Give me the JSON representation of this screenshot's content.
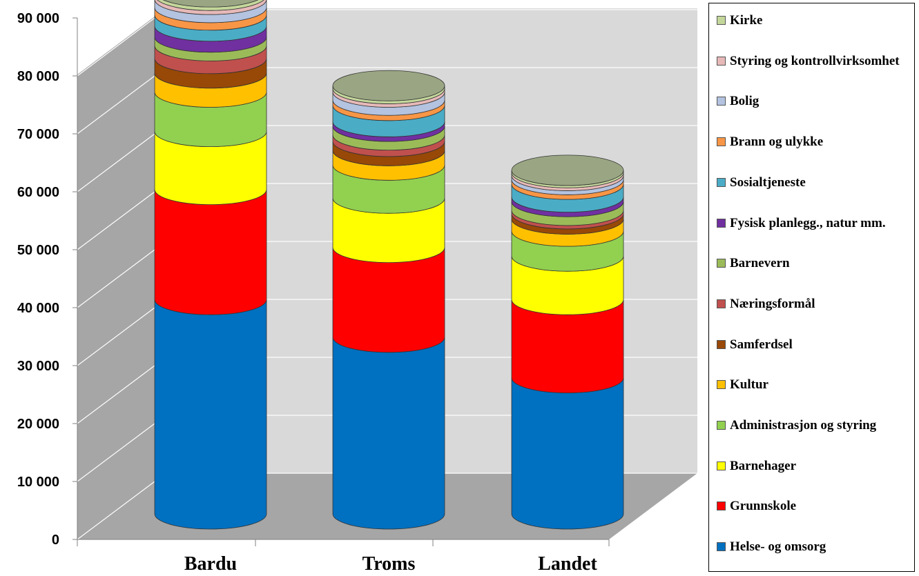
{
  "chart_data": {
    "type": "bar",
    "variant": "stacked-3d-cylinder",
    "categories": [
      "Bardu",
      "Troms",
      "Landet"
    ],
    "ylim": [
      0,
      90000
    ],
    "yticks": [
      "0",
      "10 000",
      "20 000",
      "30 000",
      "40 000",
      "50 000",
      "60 000",
      "70 000",
      "80 000",
      "90 000"
    ],
    "grid": true,
    "legend_position": "right",
    "series": [
      {
        "name": "Helse- og omsorg",
        "color": "#0070C0",
        "values": [
          37000,
          30500,
          23500
        ]
      },
      {
        "name": "Grunnskole",
        "color": "#FF0000",
        "values": [
          19000,
          15500,
          13500
        ]
      },
      {
        "name": "Barnehager",
        "color": "#FFFF00",
        "values": [
          10000,
          8500,
          7500
        ]
      },
      {
        "name": "Administrasjon og styring",
        "color": "#92D050",
        "values": [
          6800,
          5700,
          4300
        ]
      },
      {
        "name": "Kultur",
        "color": "#FFC000",
        "values": [
          3300,
          2500,
          2100
        ]
      },
      {
        "name": "Samferdsel",
        "color": "#984807",
        "values": [
          2500,
          1600,
          900
        ]
      },
      {
        "name": "Næringsformål",
        "color": "#C0504D",
        "values": [
          2200,
          1100,
          600
        ]
      },
      {
        "name": "Barnevern",
        "color": "#9BBB59",
        "values": [
          1500,
          1500,
          1500
        ]
      },
      {
        "name": "Fysisk planlegg., natur mm.",
        "color": "#7030A0",
        "values": [
          1900,
          800,
          800
        ]
      },
      {
        "name": "Sosialtjeneste",
        "color": "#4BACC6",
        "values": [
          1900,
          2800,
          2200
        ]
      },
      {
        "name": "Brann og ulykke",
        "color": "#F79646",
        "values": [
          1300,
          900,
          800
        ]
      },
      {
        "name": "Bolig",
        "color": "#B3C3E0",
        "values": [
          1400,
          1400,
          700
        ]
      },
      {
        "name": "Styring og kontrollvirksomhet",
        "color": "#E6B9B8",
        "values": [
          700,
          600,
          500
        ]
      },
      {
        "name": "Kirke",
        "color": "#C4D79B",
        "values": [
          600,
          500,
          400
        ]
      }
    ],
    "legend_order": [
      "Kirke",
      "Styring og kontrollvirksomhet",
      "Bolig",
      "Brann og ulykke",
      "Sosialtjeneste",
      "Fysisk planlegg., natur mm.",
      "Barnevern",
      "Næringsformål",
      "Samferdsel",
      "Kultur",
      "Administrasjon og styring",
      "Barnehager",
      "Grunnskole",
      "Helse- og omsorg"
    ],
    "top_cap_color": "#9AA683"
  }
}
